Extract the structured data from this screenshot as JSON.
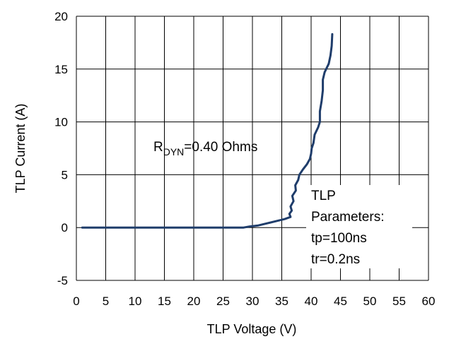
{
  "chart_data": {
    "type": "line",
    "title": "",
    "xlabel": "TLP Voltage (V)",
    "ylabel": "TLP Current (A)",
    "xlim": [
      0,
      60
    ],
    "ylim": [
      -5,
      20
    ],
    "x_ticks": [
      0,
      5,
      10,
      15,
      20,
      25,
      30,
      35,
      40,
      45,
      50,
      55,
      60
    ],
    "y_ticks": [
      -5,
      0,
      5,
      10,
      15,
      20
    ],
    "grid": true,
    "legend": "none",
    "series": [
      {
        "color": "#1f3d6b",
        "points": [
          [
            1,
            0
          ],
          [
            5,
            0
          ],
          [
            10,
            0
          ],
          [
            15,
            0
          ],
          [
            20,
            0
          ],
          [
            25,
            0
          ],
          [
            28.5,
            0
          ],
          [
            29.5,
            0.1
          ],
          [
            31,
            0.2
          ],
          [
            32.5,
            0.4
          ],
          [
            34,
            0.6
          ],
          [
            35.5,
            0.8
          ],
          [
            36.5,
            1.0
          ],
          [
            36.3,
            1.3
          ],
          [
            36.7,
            1.6
          ],
          [
            36.5,
            2.0
          ],
          [
            37.0,
            2.5
          ],
          [
            36.8,
            3.0
          ],
          [
            37.4,
            3.5
          ],
          [
            37.3,
            4.0
          ],
          [
            37.8,
            4.5
          ],
          [
            38.0,
            5.0
          ],
          [
            38.6,
            5.5
          ],
          [
            39.3,
            6.0
          ],
          [
            39.8,
            6.5
          ],
          [
            40.0,
            7.0
          ],
          [
            40.1,
            7.5
          ],
          [
            40.4,
            8.0
          ],
          [
            40.6,
            8.8
          ],
          [
            41.2,
            9.5
          ],
          [
            41.5,
            10.0
          ],
          [
            41.5,
            11.0
          ],
          [
            41.8,
            12.0
          ],
          [
            42.0,
            13.0
          ],
          [
            42.0,
            14.0
          ],
          [
            42.3,
            14.7
          ],
          [
            43.0,
            15.5
          ],
          [
            43.3,
            16.3
          ],
          [
            43.5,
            17.2
          ],
          [
            43.6,
            18.3
          ]
        ]
      }
    ],
    "annotations": {
      "rdyn_prefix": "R",
      "rdyn_subscript": "DYN",
      "rdyn_suffix": "=0.40 Ohms",
      "tlp_params": [
        "TLP",
        "Parameters:",
        "tp=100ns",
        "tr=0.2ns"
      ]
    }
  }
}
